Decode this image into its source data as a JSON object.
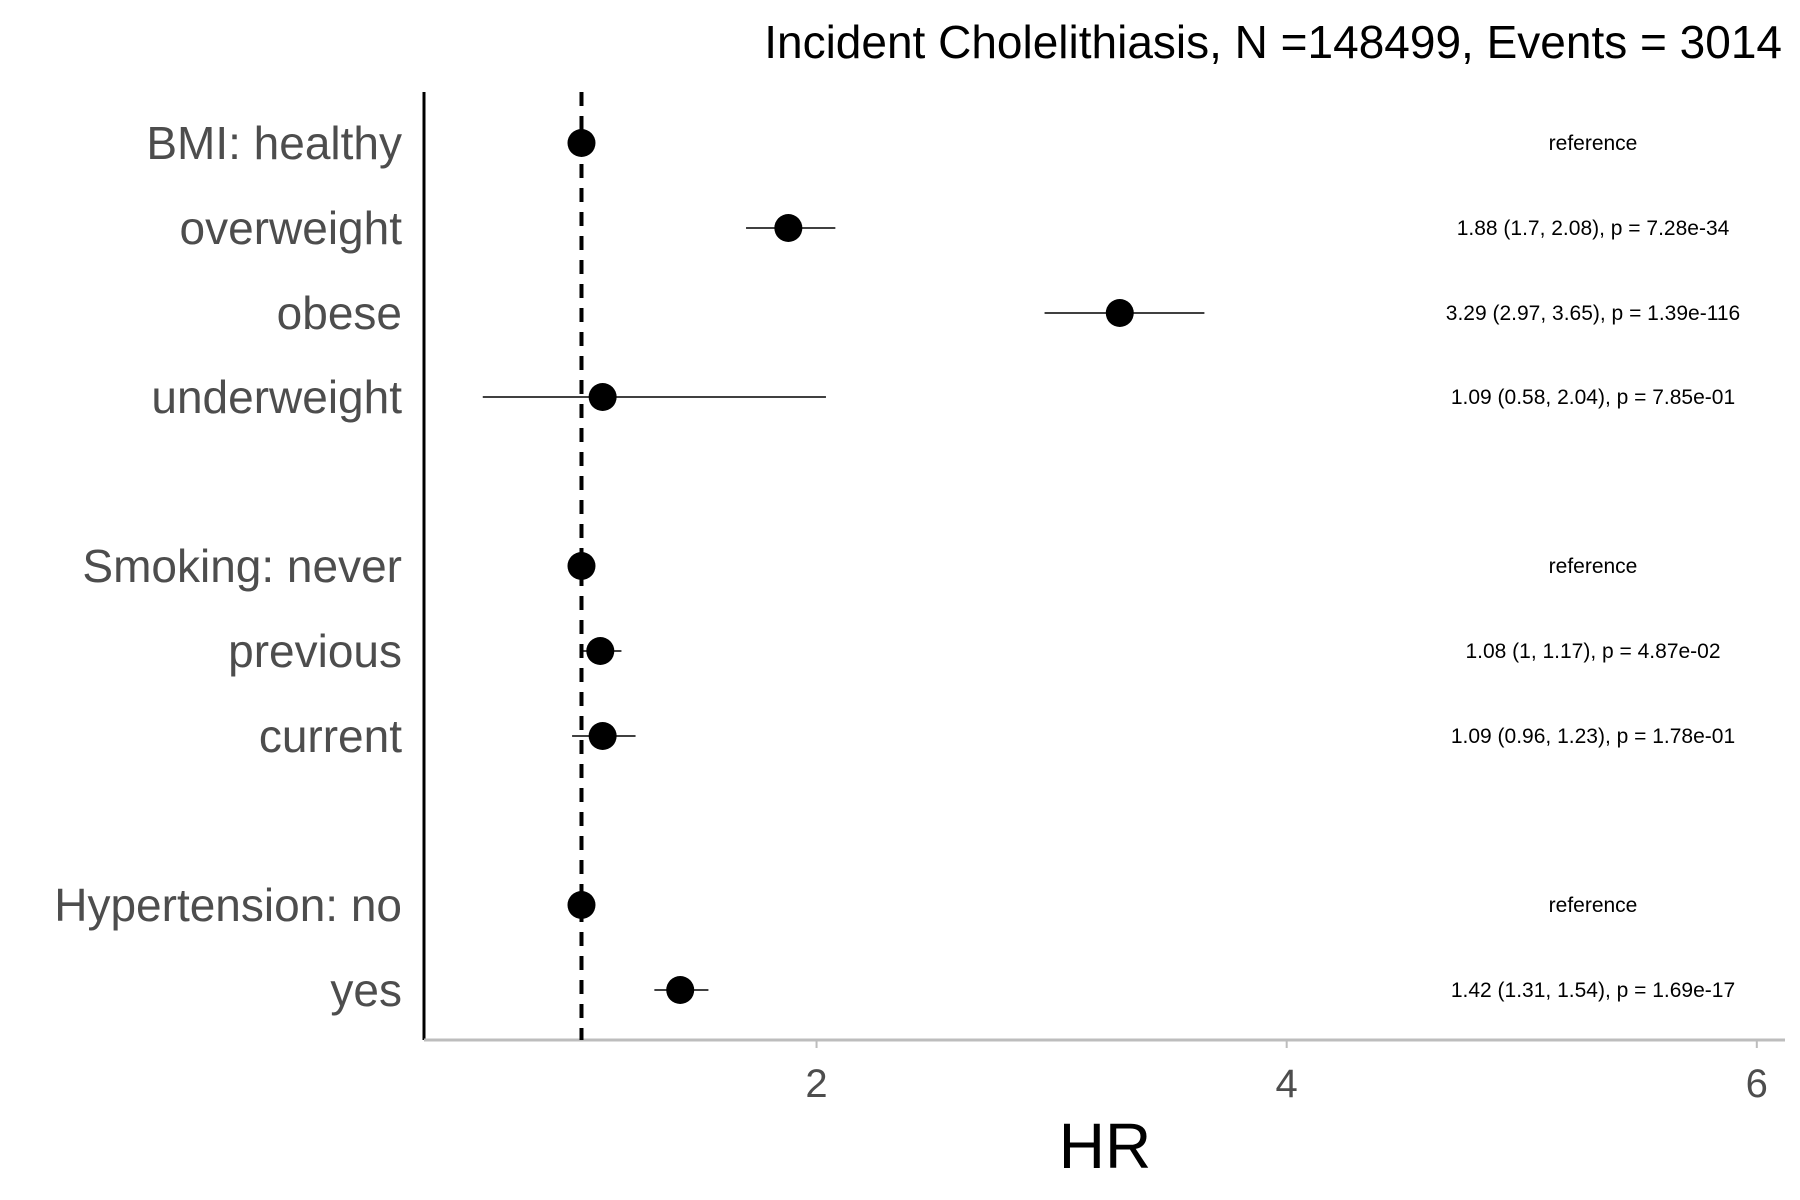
{
  "chart_data": {
    "type": "forest",
    "title": "Incident Cholelithiasis, N =148499, Events = 3014",
    "xlabel": "HR",
    "xlim": [
      0.33,
      6.12
    ],
    "xticks": [
      2,
      4,
      6
    ],
    "reference_line": 1,
    "grid": false,
    "rows": [
      {
        "label": "BMI: healthy",
        "hr": 1,
        "lower": null,
        "upper": null,
        "annotation": "reference"
      },
      {
        "label": "overweight",
        "hr": 1.88,
        "lower": 1.7,
        "upper": 2.08,
        "annotation": "1.88 (1.7, 2.08), p = 7.28e-34"
      },
      {
        "label": "obese",
        "hr": 3.29,
        "lower": 2.97,
        "upper": 3.65,
        "annotation": "3.29 (2.97, 3.65), p = 1.39e-116"
      },
      {
        "label": "underweight",
        "hr": 1.09,
        "lower": 0.58,
        "upper": 2.04,
        "annotation": "1.09 (0.58, 2.04), p = 7.85e-01"
      },
      {
        "label": "Smoking: never",
        "hr": 1,
        "lower": null,
        "upper": null,
        "annotation": "reference"
      },
      {
        "label": "previous",
        "hr": 1.08,
        "lower": 1,
        "upper": 1.17,
        "annotation": "1.08 (1, 1.17), p = 4.87e-02"
      },
      {
        "label": "current",
        "hr": 1.09,
        "lower": 0.96,
        "upper": 1.23,
        "annotation": "1.09 (0.96, 1.23), p = 1.78e-01"
      },
      {
        "label": "Hypertension: no",
        "hr": 1,
        "lower": null,
        "upper": null,
        "annotation": "reference"
      },
      {
        "label": "yes",
        "hr": 1.42,
        "lower": 1.31,
        "upper": 1.54,
        "annotation": "1.42 (1.31, 1.54), p = 1.69e-17"
      }
    ]
  }
}
